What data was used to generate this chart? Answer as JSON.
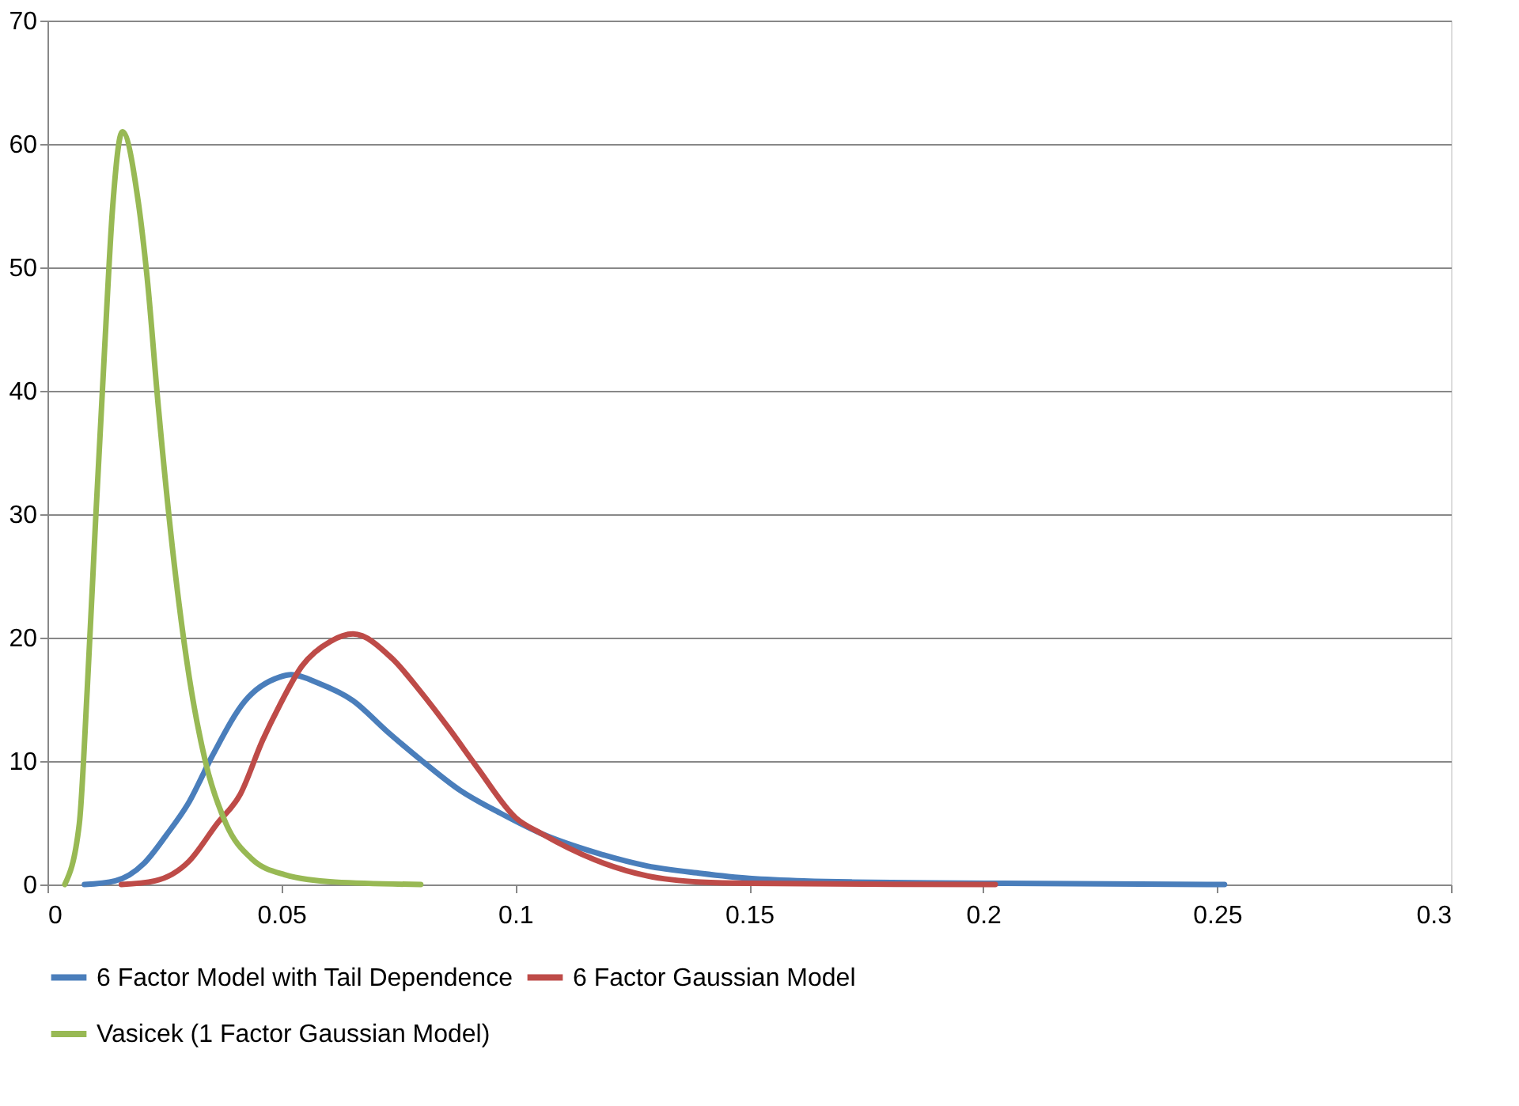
{
  "chart_data": {
    "type": "line",
    "xlim": [
      0,
      0.3
    ],
    "xticks": [
      0,
      0.05,
      0.1,
      0.15,
      0.2,
      0.25,
      0.3
    ],
    "ylim": [
      0,
      70
    ],
    "yticks": [
      0,
      10,
      20,
      30,
      40,
      50,
      60,
      70
    ],
    "grid": "y",
    "legend": "bottom",
    "marker": "none",
    "line_style": "solid",
    "series": [
      {
        "name": "6 Factor Model with Tail Dependence",
        "color": "#4a7ebb",
        "x": [
          0.0079,
          0.0145,
          0.0206,
          0.0254,
          0.0303,
          0.0352,
          0.0423,
          0.0496,
          0.0521,
          0.058,
          0.0653,
          0.0726,
          0.0798,
          0.0883,
          0.0967,
          0.1057,
          0.117,
          0.1282,
          0.1397,
          0.15,
          0.172,
          0.2005,
          0.2516
        ],
        "values": [
          0,
          0.3,
          1.7,
          4,
          6.7,
          10.4,
          14.9,
          16.8,
          17,
          16.3,
          14.9,
          12.4,
          10.1,
          7.6,
          5.8,
          4.1,
          2.6,
          1.5,
          0.9,
          0.5,
          0.2,
          0.1,
          0
        ]
      },
      {
        "name": "6 Factor Gaussian Model",
        "color": "#be4b48",
        "x": [
          0.0158,
          0.023,
          0.0303,
          0.0362,
          0.0412,
          0.046,
          0.0496,
          0.0544,
          0.0605,
          0.0653,
          0.0737,
          0.0798,
          0.0859,
          0.092,
          0.1001,
          0.1057,
          0.117,
          0.1282,
          0.1397,
          0.15,
          0.2026
        ],
        "values": [
          0,
          0.3,
          1.9,
          4.9,
          7.3,
          11.7,
          14.5,
          17.7,
          19.7,
          20.3,
          18.3,
          15.6,
          12.6,
          9.4,
          5.4,
          4.1,
          2,
          0.7,
          0.2,
          0.1,
          0
        ]
      },
      {
        "name": "Vasicek (1 Factor Gaussian Model)",
        "color": "#98b954",
        "x": [
          0.0037,
          0.0068,
          0.0085,
          0.0103,
          0.0122,
          0.0139,
          0.016,
          0.0193,
          0.0213,
          0.0237,
          0.0267,
          0.0303,
          0.0338,
          0.0382,
          0.0436,
          0.0507,
          0.0615,
          0.0798
        ],
        "values": [
          0,
          4.9,
          15.8,
          29.6,
          43.3,
          54.7,
          61,
          55.6,
          49.2,
          38.7,
          27.3,
          16.8,
          9.9,
          4.9,
          2.1,
          0.8,
          0.2,
          0
        ]
      }
    ]
  }
}
